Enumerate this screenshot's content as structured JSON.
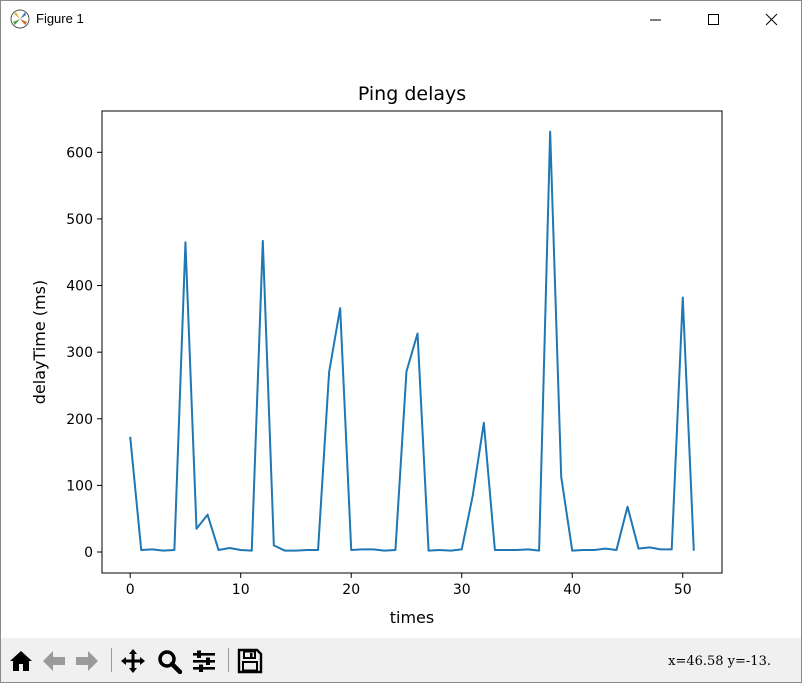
{
  "window": {
    "title": "Figure 1"
  },
  "chart_data": {
    "type": "line",
    "title": "Ping delays",
    "xlabel": "times",
    "ylabel": "delayTime (ms)",
    "xlim": [
      -2.55,
      53.55
    ],
    "ylim": [
      -31.5,
      662
    ],
    "xticks": [
      0,
      10,
      20,
      30,
      40,
      50
    ],
    "yticks": [
      0,
      100,
      200,
      300,
      400,
      500,
      600
    ],
    "grid": false,
    "series": [
      {
        "color": "#1f77b4",
        "x": [
          0,
          1,
          2,
          3,
          4,
          5,
          6,
          7,
          8,
          9,
          10,
          11,
          12,
          13,
          14,
          15,
          16,
          17,
          18,
          19,
          20,
          21,
          22,
          23,
          24,
          25,
          26,
          27,
          28,
          29,
          30,
          31,
          32,
          33,
          34,
          35,
          36,
          37,
          38,
          39,
          40,
          41,
          42,
          43,
          44,
          45,
          46,
          47,
          48,
          49,
          50,
          51
        ],
        "y": [
          173,
          3,
          4,
          2,
          3,
          465,
          35,
          56,
          3,
          6,
          3,
          2,
          467,
          10,
          2,
          2,
          3,
          3,
          270,
          366,
          3,
          4,
          4,
          2,
          3,
          271,
          328,
          2,
          3,
          2,
          4,
          85,
          194,
          3,
          3,
          3,
          4,
          2,
          631,
          113,
          2,
          3,
          3,
          5,
          3,
          68,
          5,
          7,
          4,
          4,
          382,
          2
        ]
      }
    ]
  },
  "toolbar": {
    "buttons": [
      {
        "name": "home-icon"
      },
      {
        "name": "back-icon"
      },
      {
        "name": "forward-icon"
      },
      {
        "name": "pan-icon"
      },
      {
        "name": "zoom-icon"
      },
      {
        "name": "configure-subplots-icon"
      },
      {
        "name": "save-icon"
      }
    ],
    "coords_text": "x=46.58  y=-13."
  }
}
